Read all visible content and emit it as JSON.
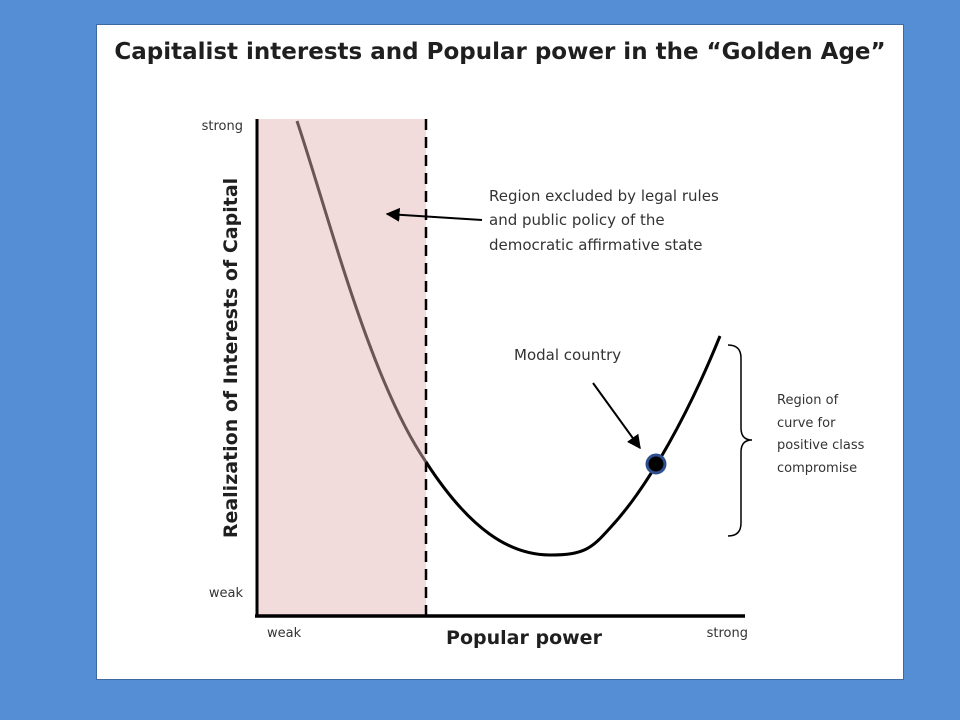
{
  "title": "Capitalist interests and Popular power in the “Golden Age”",
  "y_axis": {
    "label": "Realization of Interests of Capital",
    "top": "strong",
    "bottom": "weak"
  },
  "x_axis": {
    "label": "Popular power",
    "left": "weak",
    "right": "strong"
  },
  "annotations": {
    "excluded": [
      "Region excluded by legal rules",
      "and public policy of the",
      "democratic affirmative state"
    ],
    "modal": "Modal country",
    "compromise": [
      "Region of",
      "curve for",
      "positive class",
      "compromise"
    ]
  },
  "colors": {
    "background": "#558ed5",
    "excluded_region": "#f2dcdb",
    "curve_excluded": "#6b5556",
    "curve": "#000000",
    "marker": "#1f3864"
  }
}
